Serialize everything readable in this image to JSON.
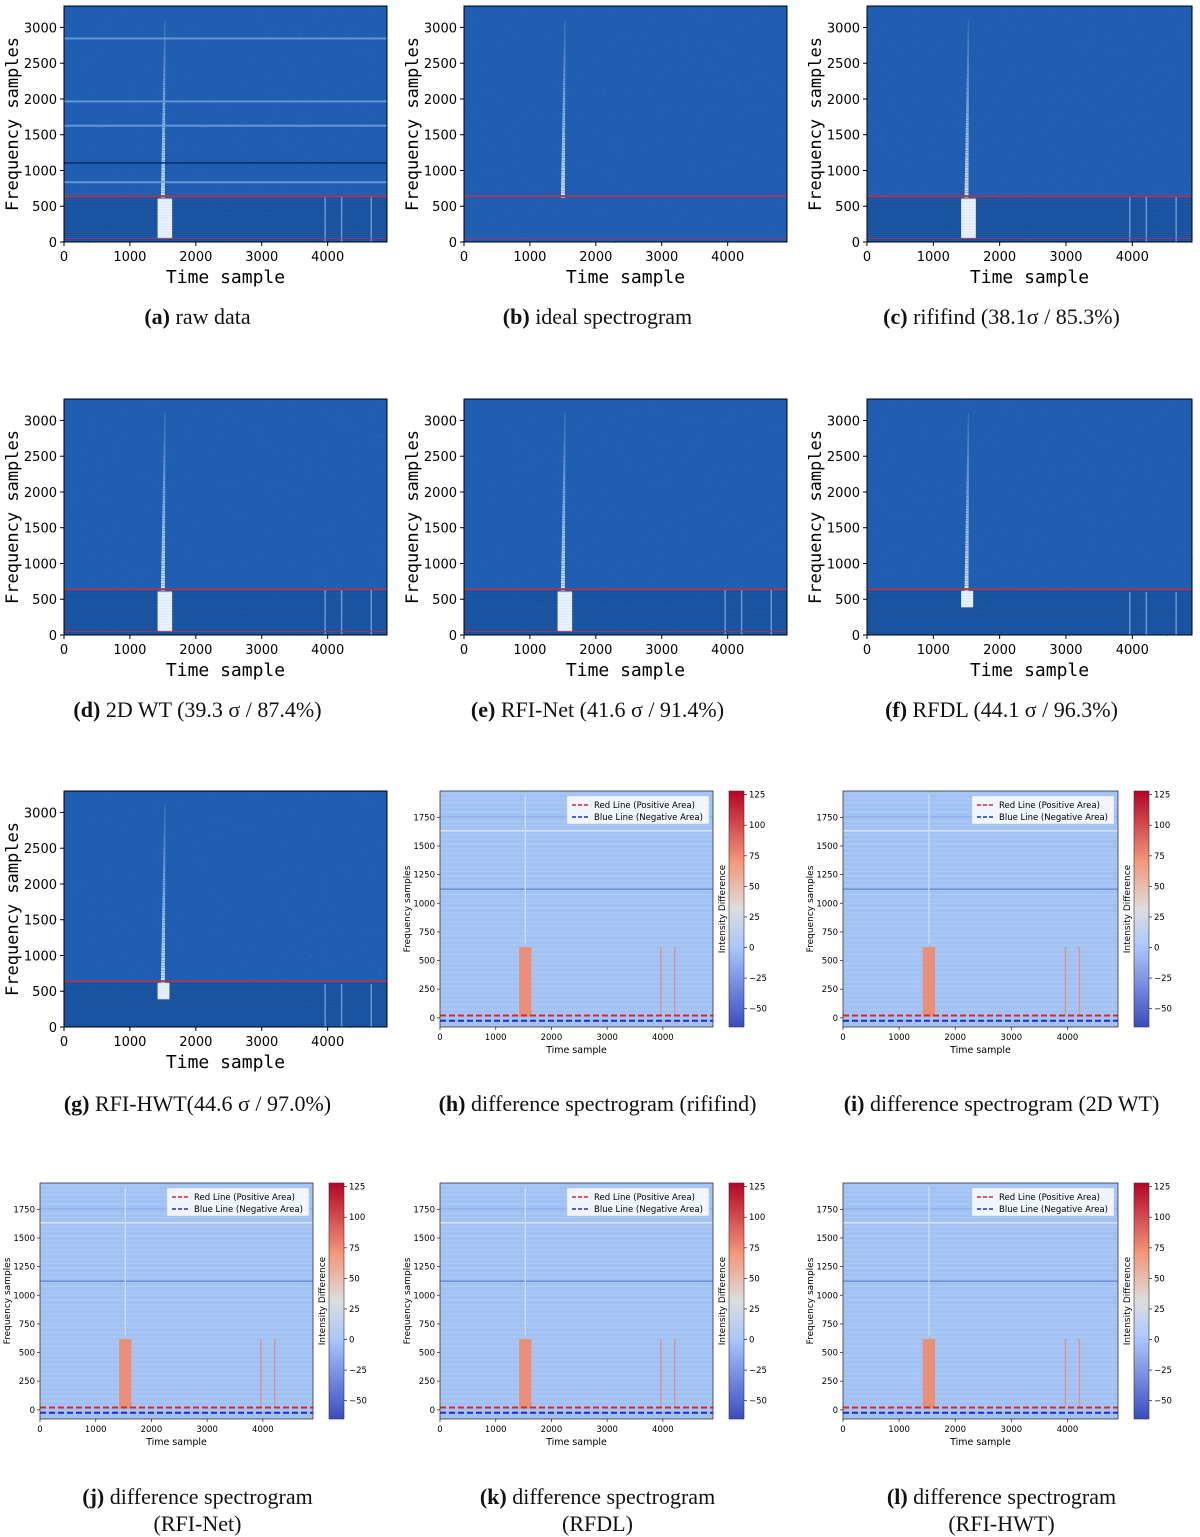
{
  "spectrogram_axes": {
    "xlabel": "Time sample",
    "ylabel": "Frequency samples",
    "xlim": [
      0,
      4900
    ],
    "ylim": [
      0,
      3300
    ],
    "xticks": [
      0,
      1000,
      2000,
      3000,
      4000
    ],
    "yticks": [
      0,
      500,
      1000,
      1500,
      2000,
      2500,
      3000
    ]
  },
  "difference_axes": {
    "xlabel": "Time sample",
    "ylabel": "Frequency samples",
    "xlim": [
      0,
      4900
    ],
    "ylim": [
      -80,
      1980
    ],
    "xticks": [
      0,
      1000,
      2000,
      3000,
      4000
    ],
    "yticks": [
      0,
      250,
      500,
      750,
      1000,
      1250,
      1500,
      1750
    ],
    "colorbar_label": "Intensity Difference",
    "colorbar_range": [
      -65,
      128
    ],
    "colorbar_ticks": [
      -50,
      -25,
      0,
      25,
      50,
      75,
      100,
      125
    ],
    "legend": [
      "Red Line (Positive Area)",
      "Blue Line (Negative Area)"
    ],
    "legend_colors": [
      "#e8231e",
      "#1f2bd9"
    ],
    "red_line_y": 20,
    "blue_line_y": -25
  },
  "colors": {
    "spectro_bg": "#1f5eb0",
    "spectro_burst": "#e6f0ff",
    "diff_bg": "#a3c2f4",
    "diff_hot": "#f18a6a",
    "rfi_line": "#b0344e"
  },
  "chart_data": [
    {
      "id": "a",
      "type": "heatmap",
      "letter": "(a)",
      "caption": " raw data",
      "caption2": "",
      "mode": "raw"
    },
    {
      "id": "b",
      "type": "heatmap",
      "letter": "(b)",
      "caption": " ideal spectrogram",
      "caption2": "",
      "mode": "ideal"
    },
    {
      "id": "c",
      "type": "heatmap",
      "letter": "(c)",
      "caption": " rififind (38.1σ / 85.3%)",
      "caption2": "",
      "mode": "cleanA"
    },
    {
      "id": "d",
      "type": "heatmap",
      "letter": "(d)",
      "caption": " 2D WT (39.3 σ / 87.4%)",
      "caption2": "",
      "mode": "cleanA"
    },
    {
      "id": "e",
      "type": "heatmap",
      "letter": "(e)",
      "caption": " RFI-Net (41.6 σ / 91.4%)",
      "caption2": "",
      "mode": "cleanB"
    },
    {
      "id": "f",
      "type": "heatmap",
      "letter": "(f)",
      "caption": " RFDL (44.1 σ / 96.3%)",
      "caption2": "",
      "mode": "cleanC"
    },
    {
      "id": "g",
      "type": "heatmap",
      "letter": "(g)",
      "caption": " RFI-HWT(44.6 σ / 97.0%)",
      "caption2": "",
      "mode": "cleanC"
    },
    {
      "id": "h",
      "type": "heatmap",
      "letter": "(h)",
      "caption": " difference spectrogram (rififind)",
      "caption2": "",
      "mode": "diff"
    },
    {
      "id": "i",
      "type": "heatmap",
      "letter": "(i)",
      "caption": " difference spectrogram (2D WT)",
      "caption2": "",
      "mode": "diff"
    },
    {
      "id": "j",
      "type": "heatmap",
      "letter": "(j)",
      "caption": " difference spectrogram",
      "caption2": "(RFI-Net)",
      "mode": "diff"
    },
    {
      "id": "k",
      "type": "heatmap",
      "letter": "(k)",
      "caption": " difference spectrogram",
      "caption2": "(RFDL)",
      "mode": "diff"
    },
    {
      "id": "l",
      "type": "heatmap",
      "letter": "(l)",
      "caption": " difference spectrogram",
      "caption2": "(RFI-HWT)",
      "mode": "diff"
    }
  ]
}
